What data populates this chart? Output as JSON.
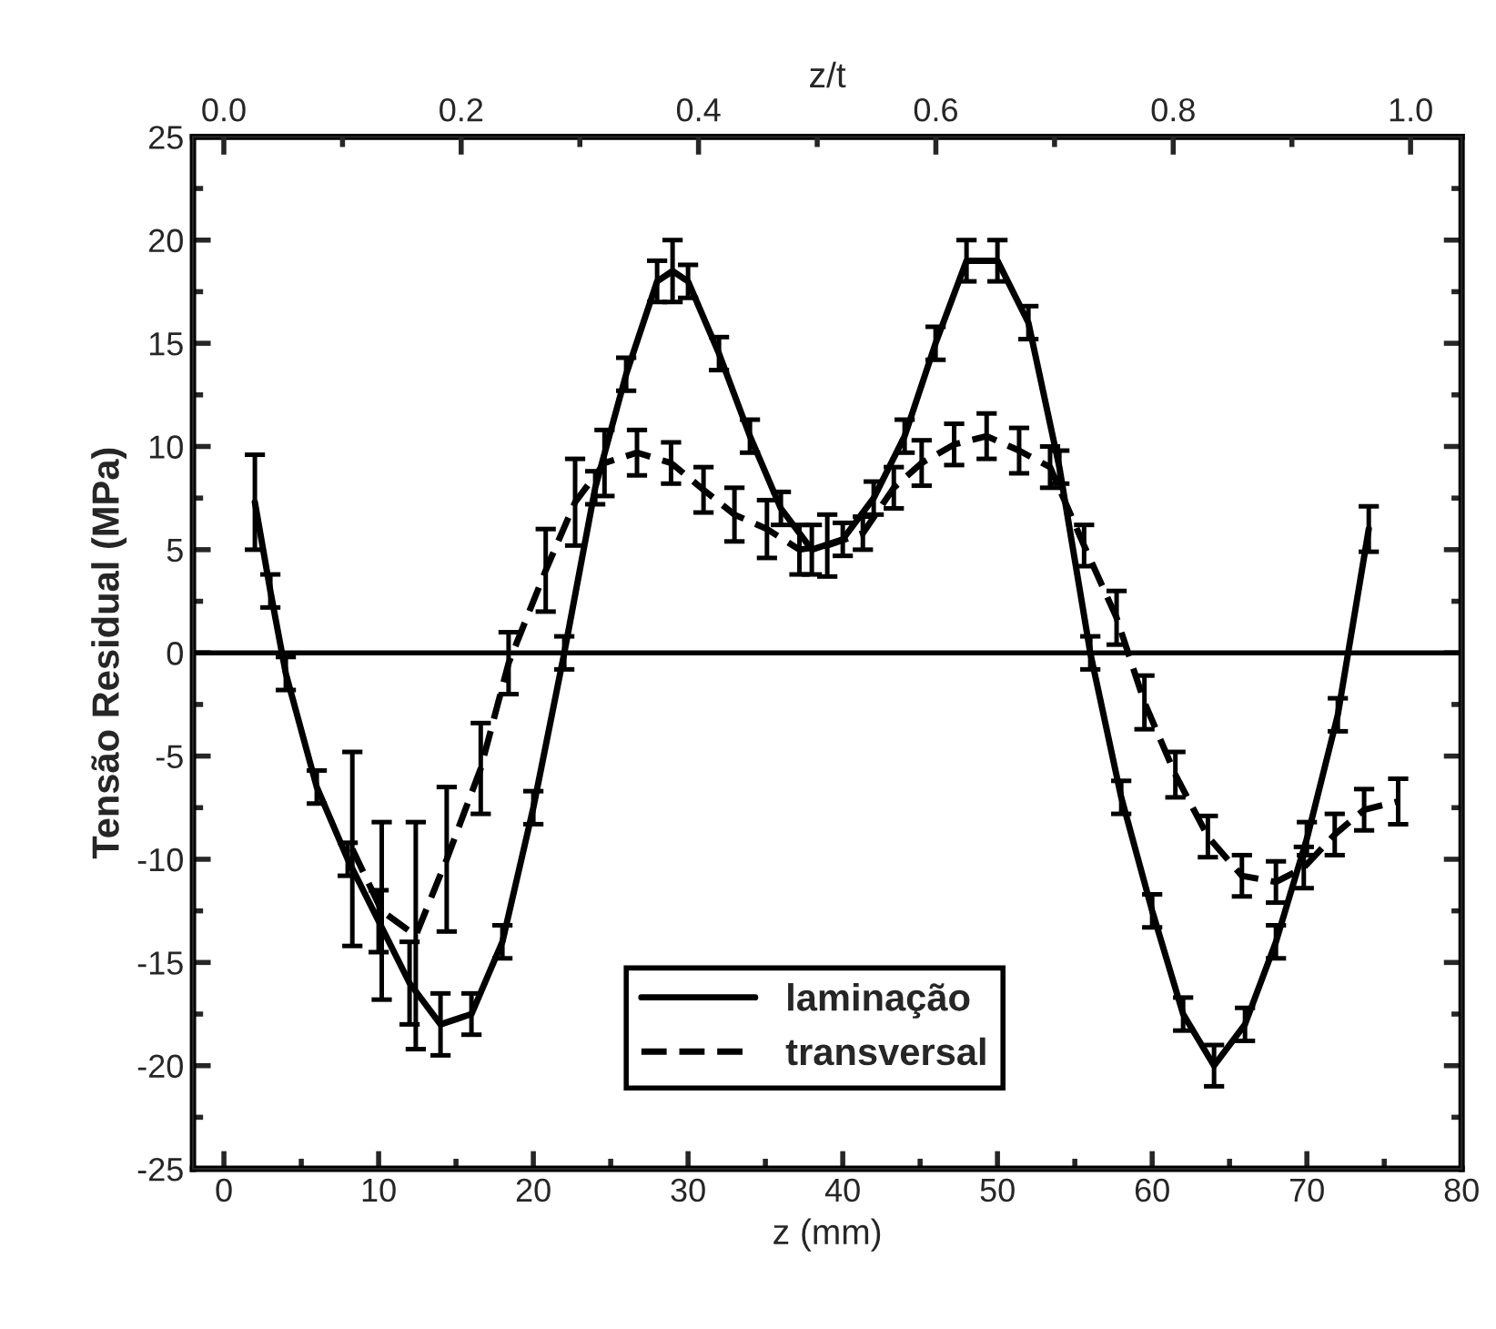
{
  "chart_data": {
    "type": "line",
    "xlabel": "z (mm)",
    "ylabel": "Tensão Residual (MPa)",
    "x2label": "z/t",
    "xlim": [
      -2,
      80
    ],
    "xticks": [
      0,
      10,
      20,
      30,
      40,
      50,
      60,
      70,
      80
    ],
    "ylim": [
      -25,
      25
    ],
    "yticks": [
      -25,
      -20,
      -15,
      -10,
      -5,
      0,
      5,
      10,
      15,
      20,
      25
    ],
    "x2lim": [
      -0.026,
      1.043
    ],
    "x2ticks": [
      {
        "value": 0,
        "label": "0.0"
      },
      {
        "value": 0.2,
        "label": "0.2"
      },
      {
        "value": 0.4,
        "label": "0.4"
      },
      {
        "value": 0.6,
        "label": "0.6"
      },
      {
        "value": 0.8,
        "label": "0.8"
      },
      {
        "value": 1,
        "label": "1.0"
      }
    ],
    "grid": false,
    "legend": "bottom",
    "marker": "none",
    "ref_lines": [
      {
        "axis": "y",
        "value": 0,
        "color": "#000000",
        "line_style": "solid"
      }
    ],
    "series": [
      {
        "name": "laminação",
        "color": "#000000",
        "line_style": "solid",
        "x": [
          2,
          3,
          4,
          6,
          8,
          10,
          12,
          14,
          16,
          18,
          20,
          22,
          24,
          26,
          28,
          29,
          30,
          32,
          34,
          36,
          38,
          40,
          42,
          44,
          46,
          48,
          50,
          52,
          54,
          56,
          58,
          60,
          62,
          64,
          66,
          68,
          70,
          72,
          74
        ],
        "values": [
          7.3,
          3,
          -1,
          -6.5,
          -10,
          -13,
          -16,
          -18,
          -17.5,
          -14,
          -7.5,
          0,
          8,
          13.5,
          18,
          18.5,
          18,
          14.5,
          10.5,
          7,
          5,
          5.5,
          7.5,
          10.5,
          15,
          19,
          19,
          16,
          9,
          0,
          -7,
          -12.5,
          -17.5,
          -20,
          -18,
          -14,
          -9,
          -3,
          6
        ],
        "errors": [
          2.3,
          0.8,
          0.8,
          0.8,
          0.8,
          1.5,
          2,
          1.5,
          1,
          0.8,
          0.8,
          0.8,
          0.8,
          0.8,
          1,
          1.5,
          0.8,
          0.8,
          0.8,
          0.8,
          1.2,
          0.8,
          0.8,
          0.8,
          0.8,
          1,
          1,
          0.8,
          0.8,
          0.8,
          0.8,
          0.8,
          0.8,
          1,
          0.8,
          0.8,
          0.8,
          0.8,
          1.1
        ]
      },
      {
        "name": "transversal",
        "color": "#000000",
        "line_style": "dashed",
        "x": [
          8.3,
          10.2,
          12.4,
          14.4,
          16.6,
          18.4,
          20.8,
          22.7,
          24.6,
          26.7,
          28.9,
          31,
          33,
          35.1,
          37.2,
          39,
          41.3,
          43.3,
          45.1,
          47.2,
          49.3,
          51.4,
          53.4,
          55.6,
          57.7,
          59.5,
          61.5,
          63.6,
          65.8,
          68,
          69.8,
          71.8,
          73.7,
          75.9
        ],
        "values": [
          -9.5,
          -12.5,
          -13.7,
          -10,
          -5.6,
          -0.5,
          4,
          7.3,
          9.2,
          9.7,
          9.2,
          7.9,
          6.7,
          6,
          5,
          5.2,
          5.8,
          8,
          9.2,
          10.1,
          10.5,
          9.8,
          9,
          5.2,
          1.7,
          -2.4,
          -5.9,
          -8.9,
          -10.8,
          -11.1,
          -10.4,
          -8.8,
          -7.6,
          -7.2
        ],
        "errors": [
          4.7,
          4.3,
          5.5,
          3.5,
          2.2,
          1.5,
          2,
          2.1,
          1.6,
          1.1,
          1,
          1.1,
          1.3,
          1.4,
          1.2,
          1.5,
          0.8,
          1,
          1.1,
          1,
          1.1,
          1.1,
          1,
          1,
          1.3,
          1.3,
          1.1,
          1,
          1,
          1,
          1,
          1,
          1,
          1.1
        ]
      }
    ]
  }
}
